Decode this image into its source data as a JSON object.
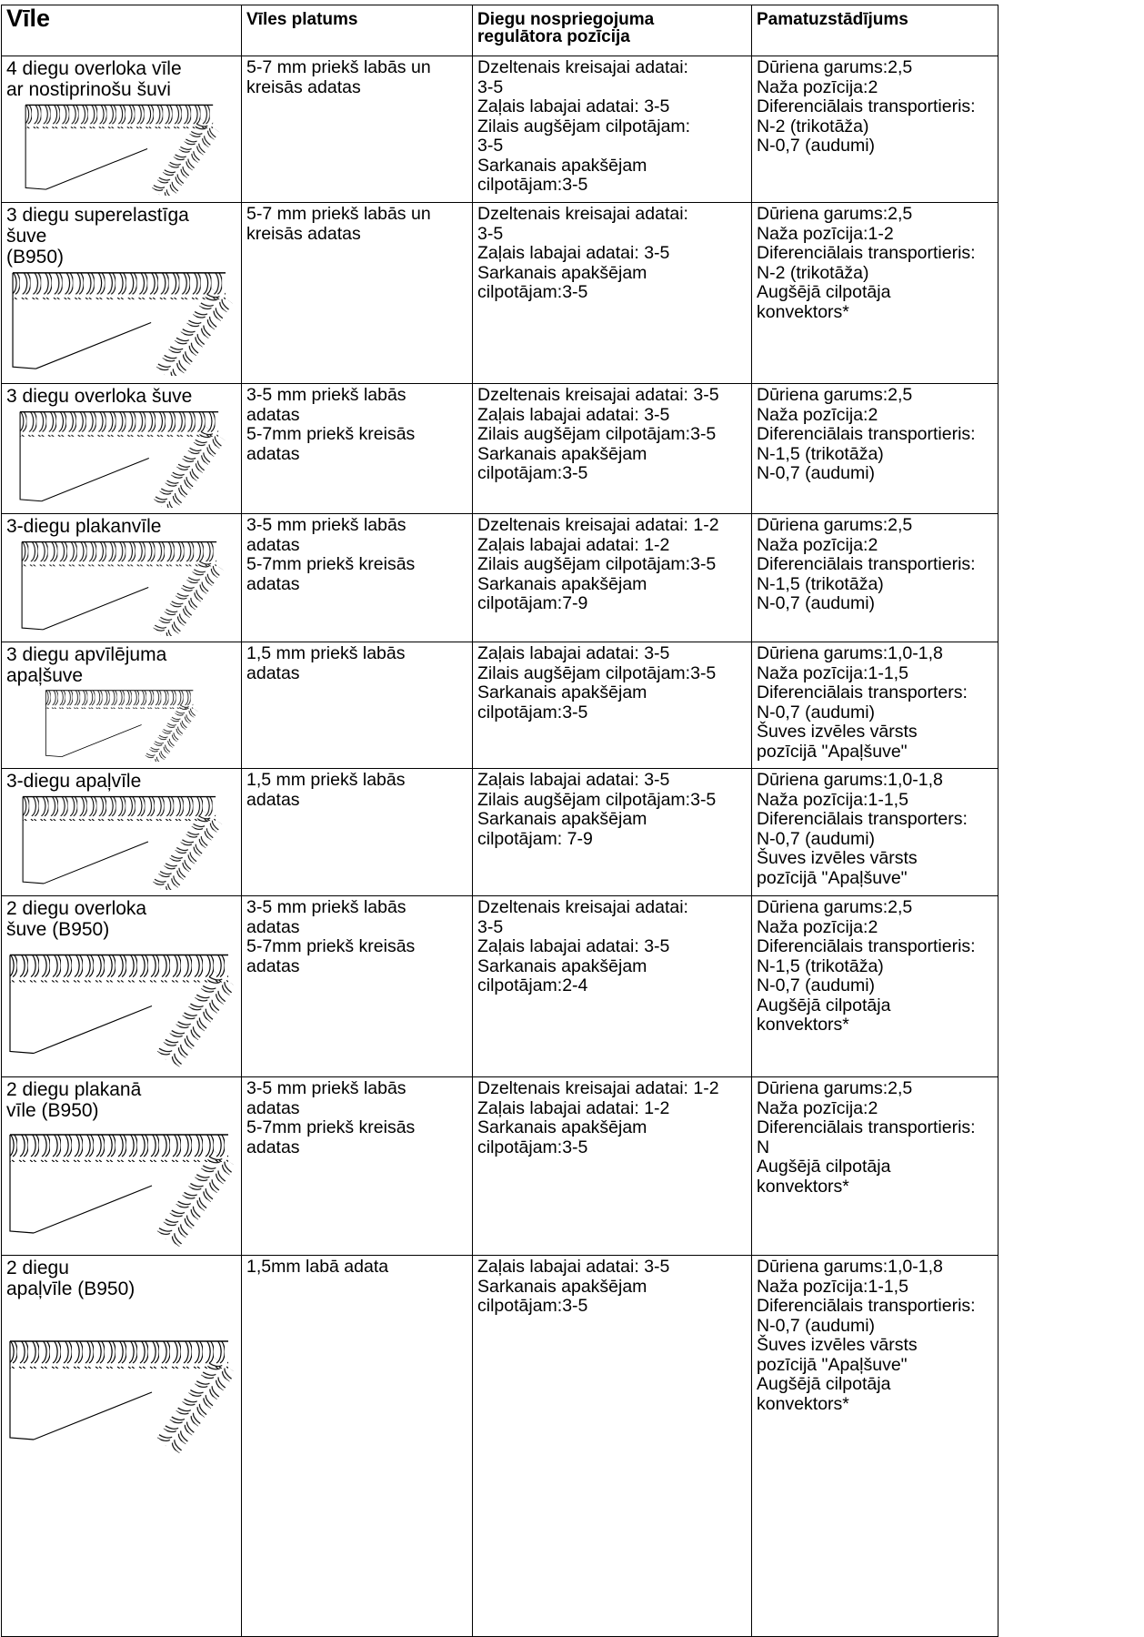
{
  "table": {
    "header": [
      [
        "Vīle"
      ],
      [
        "Vīles platums"
      ],
      [
        "Diegu nospriegojuma",
        "regulātora pozīcija"
      ],
      [
        "Pamatuzstādījums"
      ]
    ],
    "rows": [
      [
        [
          "4 diegu overloka vīle",
          "ar nostiprinošu šuvi"
        ],
        [
          "5-7 mm priekš labās un",
          "kreisās adatas"
        ],
        [
          "Dzeltenais kreisajai adatai:",
          "3-5",
          "Zaļais labajai adatai: 3-5",
          "Zilais augšējam cilpotājam:",
          "3-5",
          "Sarkanais apakšējam",
          "cilpotājam:3-5"
        ],
        [
          "Dūriena garums:2,5",
          "Naža pozīcija:2",
          "Diferenciālais transportieris:",
          "N-2 (trikotāža)",
          "N-0,7 (audumi)"
        ]
      ],
      [
        [
          "3 diegu superelastīga",
          "šuve",
          "(B950)"
        ],
        [
          "5-7 mm priekš labās un",
          "kreisās adatas"
        ],
        [
          "Dzeltenais kreisajai adatai:",
          "3-5",
          "Zaļais labajai adatai: 3-5",
          "Sarkanais apakšējam",
          "cilpotājam:3-5"
        ],
        [
          "Dūriena garums:2,5",
          "Naža pozīcija:1-2",
          "Diferenciālais transportieris:",
          "N-2 (trikotāža)",
          "Augšējā cilpotāja",
          "konvektors*"
        ]
      ],
      [
        [
          "3 diegu overloka šuve"
        ],
        [
          "3-5 mm priekš labās",
          "adatas",
          "5-7mm priekš kreisās",
          "adatas"
        ],
        [
          "Dzeltenais kreisajai adatai: 3-5",
          "Zaļais labajai adatai: 3-5",
          "Zilais augšējam cilpotājam:3-5",
          "Sarkanais apakšējam",
          "cilpotājam:3-5"
        ],
        [
          "Dūriena garums:2,5",
          "Naža pozīcija:2",
          "Diferenciālais transportieris:",
          "N-1,5 (trikotāža)",
          "N-0,7 (audumi)"
        ]
      ],
      [
        [
          "3-diegu plakanvīle"
        ],
        [
          "3-5 mm priekš labās",
          "adatas",
          "5-7mm priekš kreisās",
          "adatas"
        ],
        [
          "Dzeltenais kreisajai adatai: 1-2",
          "Zaļais labajai adatai: 1-2",
          "Zilais augšējam cilpotājam:3-5",
          "Sarkanais apakšējam",
          "cilpotājam:7-9"
        ],
        [
          "Dūriena garums:2,5",
          "Naža pozīcija:2",
          "Diferenciālais transportieris:",
          "N-1,5 (trikotāža)",
          "N-0,7 (audumi)"
        ]
      ],
      [
        [
          "3 diegu apvīlējuma",
          "apaļšuve"
        ],
        [
          "1,5 mm priekš labās",
          "adatas"
        ],
        [
          "Zaļais labajai adatai: 3-5",
          "Zilais augšējam cilpotājam:3-5",
          "Sarkanais apakšējam",
          "cilpotājam:3-5"
        ],
        [
          "Dūriena garums:1,0-1,8",
          "Naža pozīcija:1-1,5",
          "Diferenciālais transporters:",
          "N-0,7 (audumi)",
          "Šuves izvēles vārsts",
          "pozīcijā \"Apaļšuve\""
        ]
      ],
      [
        [
          "3-diegu apaļvīle"
        ],
        [
          "1,5 mm priekš labās",
          "adatas"
        ],
        [
          "Zaļais labajai adatai: 3-5",
          "Zilais augšējam cilpotājam:3-5",
          "Sarkanais apakšējam",
          "cilpotājam: 7-9"
        ],
        [
          "Dūriena garums:1,0-1,8",
          "Naža pozīcija:1-1,5",
          "Diferenciālais transporters:",
          "N-0,7 (audumi)",
          "Šuves izvēles vārsts",
          "pozīcijā \"Apaļšuve\""
        ]
      ],
      [
        [
          "2 diegu overloka",
          "šuve (B950)"
        ],
        [
          "3-5 mm priekš labās",
          "adatas",
          "5-7mm priekš kreisās",
          "adatas"
        ],
        [
          "Dzeltenais kreisajai adatai:",
          "3-5",
          "Zaļais labajai adatai: 3-5",
          "Sarkanais apakšējam",
          "cilpotājam:2-4"
        ],
        [
          "Dūriena garums:2,5",
          "Naža pozīcija:2",
          "Diferenciālais transportieris:",
          "N-1,5 (trikotāža)",
          "N-0,7 (audumi)",
          "Augšējā cilpotāja",
          "konvektors*"
        ]
      ],
      [
        [
          "2 diegu plakanā",
          "vīle (B950)"
        ],
        [
          "3-5 mm priekš labās",
          "adatas",
          "5-7mm priekš kreisās",
          "adatas"
        ],
        [
          "Dzeltenais kreisajai adatai: 1-2",
          "Zaļais labajai adatai: 1-2",
          "Sarkanais apakšējam",
          "cilpotājam:3-5"
        ],
        [
          "Dūriena garums:2,5",
          "Naža pozīcija:2",
          "Diferenciālais transportieris:",
          "N",
          "Augšējā cilpotāja",
          "konvektors*"
        ]
      ],
      [
        [
          "2 diegu",
          "apaļvīle (B950)"
        ],
        [
          "1,5mm labā adata"
        ],
        [
          "Zaļais labajai adatai: 3-5",
          "Sarkanais apakšējam",
          "cilpotājam:3-5"
        ],
        [
          "Dūriena garums:1,0-1,8",
          "Naža pozīcija:1-1,5",
          "Diferenciālais transportieris:",
          "N-0,7 (audumi)",
          "Šuves izvēles vārsts",
          "pozīcijā \"Apaļšuve\"",
          "Augšējā cilpotāja",
          "konvektors*"
        ]
      ]
    ]
  }
}
